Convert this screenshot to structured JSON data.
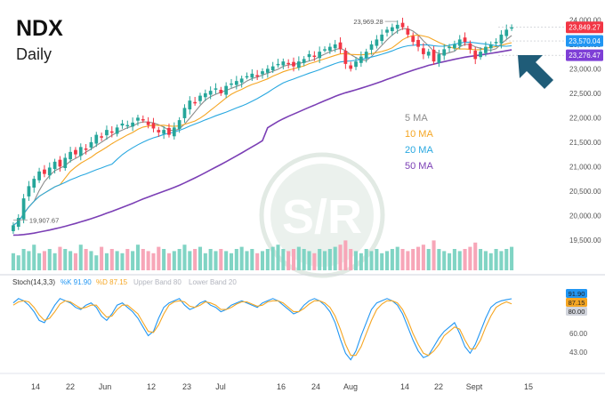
{
  "chart_data": [
    {
      "type": "candlestick",
      "title": "NDX",
      "subtitle": "Daily",
      "x_ticks": [
        "14",
        "22",
        "Jun",
        "12",
        "23",
        "Jul",
        "16",
        "24",
        "Aug",
        "14",
        "22",
        "Sept",
        "15"
      ],
      "y_ticks": [
        19500,
        20000,
        20500,
        21000,
        21500,
        22000,
        22500,
        23000,
        23500,
        24000
      ],
      "y_tick_labels": [
        "19,500.00",
        "20,000.00",
        "20,500.00",
        "21,000.00",
        "21,500.00",
        "22,000.00",
        "22,500.00",
        "23,000.00",
        "23,500.00",
        "24,000.00"
      ],
      "ylim": [
        19170,
        24080
      ],
      "badges": [
        {
          "label": "23,849.27",
          "value": 23849.27,
          "color": "#f23645"
        },
        {
          "label": "23,570.04",
          "value": 23570.04,
          "color": "#2196f3"
        },
        {
          "label": "23,276.47",
          "value": 23276.47,
          "color": "#7e3fd6"
        }
      ],
      "annotations": [
        {
          "label": "23,969.28",
          "value": 23969.28,
          "kind": "high"
        },
        {
          "label": "19,907.67",
          "value": 19907.67,
          "kind": "low"
        }
      ],
      "legend": [
        {
          "name": "5 MA",
          "color": "#8c8c8c"
        },
        {
          "name": "10 MA",
          "color": "#f5a623"
        },
        {
          "name": "20 MA",
          "color": "#29a8e0"
        },
        {
          "name": "50 MA",
          "color": "#7b3fb5"
        }
      ],
      "colors": {
        "up": "#26a69a",
        "down": "#f23645",
        "vol_up": "#80d4c4",
        "vol_down": "#f7a6b8"
      },
      "close": [
        19800,
        19950,
        20350,
        20600,
        20750,
        20900,
        20850,
        20980,
        21100,
        21000,
        21180,
        21300,
        21250,
        21400,
        21350,
        21500,
        21650,
        21600,
        21750,
        21700,
        21800,
        21880,
        21850,
        21900,
        22000,
        21950,
        21850,
        21780,
        21700,
        21750,
        21650,
        21800,
        21950,
        22200,
        22350,
        22300,
        22450,
        22500,
        22550,
        22600,
        22500,
        22650,
        22700,
        22750,
        22800,
        22850,
        22900,
        22850,
        22950,
        23000,
        23050,
        23100,
        23150,
        23100,
        23050,
        23150,
        23200,
        23300,
        23250,
        23350,
        23400,
        23450,
        23500,
        23400,
        23100,
        23000,
        23150,
        23250,
        23350,
        23500,
        23600,
        23700,
        23800,
        23850,
        23900,
        23850,
        23700,
        23550,
        23450,
        23300,
        23350,
        23150,
        23300,
        23400,
        23450,
        23500,
        23600,
        23550,
        23400,
        23200,
        23350,
        23450,
        23500,
        23550,
        23700,
        23800,
        23849
      ],
      "volume": [
        0.4,
        0.35,
        0.5,
        0.45,
        0.6,
        0.4,
        0.45,
        0.5,
        0.4,
        0.55,
        0.5,
        0.45,
        0.4,
        0.6,
        0.5,
        0.45,
        0.35,
        0.55,
        0.4,
        0.5,
        0.45,
        0.4,
        0.5,
        0.45,
        0.6,
        0.5,
        0.45,
        0.4,
        0.55,
        0.5,
        0.4,
        0.45,
        0.5,
        0.6,
        0.45,
        0.5,
        0.55,
        0.4,
        0.5,
        0.45,
        0.5,
        0.45,
        0.4,
        0.5,
        0.55,
        0.45,
        0.5,
        0.4,
        0.45,
        0.5,
        0.55,
        0.6,
        0.5,
        0.45,
        0.5,
        0.55,
        0.5,
        0.45,
        0.4,
        0.5,
        0.45,
        0.5,
        0.55,
        0.6,
        0.7,
        0.5,
        0.45,
        0.4,
        0.5,
        0.45,
        0.5,
        0.4,
        0.45,
        0.5,
        0.55,
        0.5,
        0.45,
        0.5,
        0.55,
        0.6,
        0.5,
        0.7,
        0.5,
        0.45,
        0.4,
        0.5,
        0.45,
        0.5,
        0.55,
        0.65,
        0.5,
        0.45,
        0.4,
        0.5,
        0.45,
        0.5,
        0.55
      ]
    },
    {
      "type": "line",
      "title": "Stoch(14,3,3)",
      "legend": [
        {
          "name": "%K 91.90",
          "color": "#2196f3"
        },
        {
          "name": "%D 87.15",
          "color": "#f5a623"
        },
        {
          "name": "Upper Band 80",
          "color": "#b2b5be"
        },
        {
          "name": "Lower Band 20",
          "color": "#b2b5be"
        }
      ],
      "y_ticks": [
        60,
        43
      ],
      "y_tick_labels": [
        "60.00",
        "43.00"
      ],
      "ylim": [
        30,
        100
      ],
      "badges": [
        {
          "label": "91.90",
          "value": 91.9,
          "color": "#2196f3"
        },
        {
          "label": "87.15",
          "value": 87.15,
          "color": "#f5a623"
        },
        {
          "label": "80.00",
          "value": 80.0,
          "color": "#d1d4dc"
        }
      ],
      "series": [
        {
          "name": "%K",
          "values": [
            88,
            92,
            90,
            86,
            80,
            72,
            70,
            78,
            86,
            92,
            90,
            88,
            84,
            82,
            86,
            88,
            84,
            76,
            72,
            78,
            86,
            88,
            84,
            80,
            74,
            66,
            58,
            62,
            74,
            84,
            88,
            90,
            92,
            86,
            82,
            84,
            88,
            90,
            86,
            84,
            80,
            82,
            86,
            88,
            90,
            88,
            86,
            84,
            88,
            90,
            92,
            90,
            86,
            82,
            78,
            80,
            86,
            90,
            92,
            90,
            86,
            80,
            70,
            55,
            42,
            36,
            44,
            58,
            70,
            82,
            88,
            90,
            92,
            90,
            86,
            78,
            66,
            54,
            44,
            38,
            40,
            48,
            56,
            62,
            66,
            70,
            60,
            48,
            42,
            50,
            62,
            74,
            84,
            88,
            90,
            91,
            91.9
          ]
        },
        {
          "name": "%D",
          "values": [
            86,
            89,
            90,
            89,
            84,
            77,
            72,
            74,
            80,
            87,
            90,
            89,
            86,
            83,
            84,
            86,
            86,
            80,
            75,
            76,
            82,
            86,
            86,
            82,
            78,
            70,
            62,
            61,
            68,
            78,
            86,
            89,
            90,
            89,
            85,
            84,
            86,
            89,
            88,
            86,
            82,
            82,
            84,
            87,
            89,
            89,
            87,
            85,
            86,
            89,
            90,
            90,
            88,
            84,
            80,
            80,
            83,
            87,
            90,
            90,
            88,
            84,
            76,
            64,
            50,
            40,
            40,
            48,
            60,
            72,
            82,
            87,
            90,
            90,
            88,
            82,
            72,
            60,
            50,
            42,
            40,
            44,
            50,
            58,
            62,
            66,
            64,
            54,
            46,
            46,
            54,
            66,
            76,
            84,
            87,
            89,
            87.15
          ]
        }
      ]
    }
  ]
}
